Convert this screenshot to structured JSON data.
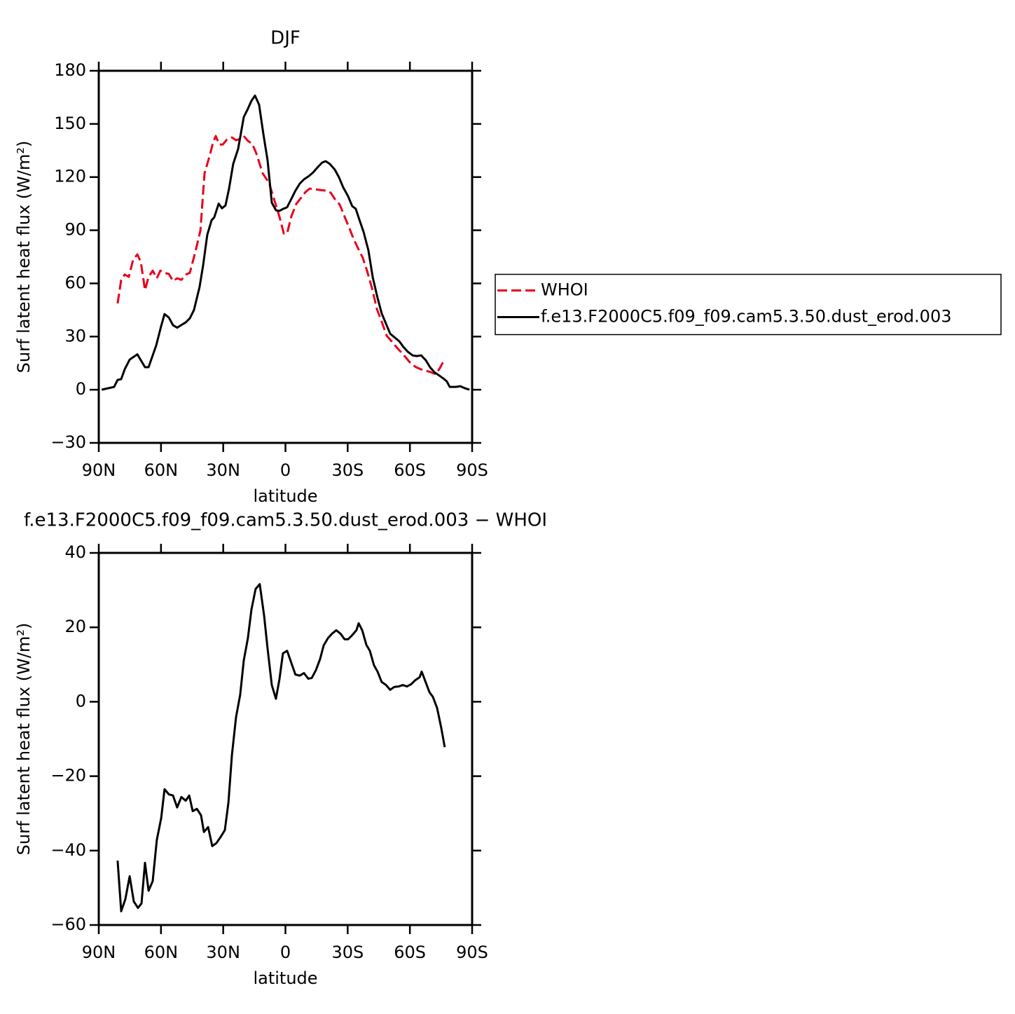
{
  "chart_data": [
    {
      "type": "line",
      "title": "DJF",
      "x_label": "latitude",
      "y_label": "Surf latent heat flux (W/m²)",
      "xlim": [
        90,
        -90
      ],
      "xticks": [
        {
          "value": 90,
          "label": "90N"
        },
        {
          "value": 60,
          "label": "60N"
        },
        {
          "value": 30,
          "label": "30N"
        },
        0,
        {
          "value": -30,
          "label": "30S"
        },
        {
          "value": -60,
          "label": "60S"
        },
        {
          "value": -90,
          "label": "90S"
        }
      ],
      "ylim": [
        -30,
        180
      ],
      "yticks": [
        {
          "value": -30,
          "label": "−30"
        },
        0,
        30,
        60,
        90,
        120,
        150,
        180
      ],
      "legend": "right",
      "series": [
        {
          "name": "WHOI",
          "color": "#e8001a",
          "dash": true,
          "x": [
            80.9,
            79.2,
            77.5,
            75.5,
            73.5,
            71.4,
            69.7,
            67.7,
            66,
            64,
            62,
            60.3,
            58.3,
            56.2,
            54.2,
            52.2,
            50.2,
            48.1,
            46.1,
            43.4,
            41,
            39,
            36.6,
            34.9,
            33.6,
            31.9,
            30.2,
            28.2,
            25.8,
            23.8,
            21.8,
            19.8,
            18.1,
            16,
            14,
            11,
            7.9,
            5.2,
            2.9,
            0.8,
            -0.8,
            -2.8,
            -5.2,
            -7.6,
            -9.6,
            -11.7,
            -14.4,
            -17.1,
            -19.8,
            -21.8,
            -23.8,
            -26.2,
            -28.5,
            -30.6,
            -32.9,
            -35.3,
            -37.3,
            -39.3,
            -41.7,
            -44.1,
            -46.4,
            -48.8,
            -51.2,
            -53.5,
            -55.9,
            -58.3,
            -60.6,
            -63,
            -65.4,
            -67.7,
            -70.1,
            -72.5,
            -74.5,
            -76.8
          ],
          "values": [
            48.7,
            62,
            65,
            63.7,
            73.2,
            76.4,
            72,
            56.2,
            63.7,
            67.2,
            62.9,
            67.2,
            66,
            65.3,
            61.3,
            62.9,
            62,
            64.9,
            66,
            78,
            89.8,
            122.2,
            131.7,
            139.6,
            143.2,
            138.4,
            138.4,
            141.2,
            142.4,
            140.8,
            141.6,
            142.8,
            140.4,
            138.8,
            133.3,
            122.2,
            116.7,
            106.4,
            97.7,
            88.2,
            88.2,
            97.7,
            104.8,
            108.4,
            111.5,
            113.5,
            113.1,
            112.7,
            112.3,
            111.2,
            107.6,
            104.4,
            97.7,
            91.8,
            85,
            79.1,
            74.4,
            67.2,
            57.4,
            45.5,
            38.4,
            30.5,
            27.3,
            24.1,
            21,
            17.8,
            14.6,
            12.7,
            11.5,
            10.7,
            9.9,
            8.7,
            12.3,
            17.4
          ]
        },
        {
          "name": "f.e13.F2000C5.f09_f09.cam5.3.50.dust_erod.003",
          "color": "#000000",
          "dash": false,
          "x": [
            88.6,
            82.6,
            80.9,
            79.2,
            77.5,
            75.1,
            71.4,
            67.7,
            66,
            62.3,
            59.9,
            58.3,
            56.2,
            54.2,
            52.2,
            49.8,
            48.1,
            46.1,
            44.1,
            41.4,
            39.7,
            37.7,
            35.6,
            34.3,
            32.2,
            30.6,
            28.9,
            27.2,
            25.2,
            22.8,
            20.1,
            18.4,
            16.4,
            14.7,
            12.7,
            10.6,
            8.6,
            6.6,
            4.6,
            2.9,
            1.2,
            -0.8,
            -2.8,
            -4.8,
            -6.9,
            -8.9,
            -11.3,
            -13.3,
            -15.4,
            -17.7,
            -19.4,
            -21.4,
            -23.8,
            -25.8,
            -27.8,
            -30.2,
            -32.2,
            -33.9,
            -35.6,
            -37.7,
            -40,
            -42.1,
            -44.4,
            -46.4,
            -48.5,
            -50.5,
            -52.9,
            -54.9,
            -56.9,
            -59,
            -61.3,
            -63.3,
            -65.4,
            -67.7,
            -69.7,
            -71.8,
            -73.8,
            -76.2,
            -77.8,
            -79.2,
            -82.2,
            -84.3,
            -86.6,
            -88.7
          ],
          "values": [
            0,
            1.6,
            5.5,
            6,
            11.5,
            17,
            20,
            12.7,
            12.7,
            25,
            36,
            42.7,
            40.7,
            36.4,
            35,
            36.8,
            38,
            40.3,
            45,
            58,
            70,
            87.4,
            95.7,
            97.3,
            105,
            102.4,
            104,
            113.5,
            127.4,
            136,
            153.9,
            157.8,
            163,
            166,
            160.8,
            144,
            129.4,
            105.6,
            101.3,
            100.9,
            102,
            103,
            107.6,
            112.3,
            116.3,
            118.7,
            120.6,
            122.6,
            125.4,
            128.2,
            129,
            127.4,
            124.2,
            119.9,
            114.3,
            109.2,
            103.6,
            102.1,
            96.1,
            89,
            78.7,
            63.3,
            51.8,
            43.1,
            37.2,
            31.6,
            29.3,
            27.3,
            24.1,
            21.4,
            19.4,
            19,
            19.4,
            16.6,
            12.7,
            9.9,
            8.3,
            6.3,
            4.7,
            1.6,
            1.6,
            2,
            0.8,
            0
          ]
        }
      ]
    },
    {
      "type": "line",
      "title": "f.e13.F2000C5.f09_f09.cam5.3.50.dust_erod.003 − WHOI",
      "x_label": "latitude",
      "y_label": "Surf latent heat flux (W/m²)",
      "xlim": [
        90,
        -90
      ],
      "xticks": [
        {
          "value": 90,
          "label": "90N"
        },
        {
          "value": 60,
          "label": "60N"
        },
        {
          "value": 30,
          "label": "30N"
        },
        0,
        {
          "value": -30,
          "label": "30S"
        },
        {
          "value": -60,
          "label": "60S"
        },
        {
          "value": -90,
          "label": "90S"
        }
      ],
      "ylim": [
        -60,
        40
      ],
      "yticks": [
        {
          "value": -60,
          "label": "−60"
        },
        {
          "value": -40,
          "label": "−40"
        },
        {
          "value": -20,
          "label": "−20"
        },
        0,
        20,
        40
      ],
      "series": [
        {
          "color": "#000000",
          "dash": false,
          "x": [
            80.9,
            79.2,
            77.2,
            75.1,
            73.1,
            71.1,
            69.4,
            67.7,
            66,
            64,
            62,
            59.9,
            58.3,
            56.2,
            54.2,
            52.2,
            50.2,
            48.1,
            46.4,
            44.7,
            42.7,
            40.7,
            39.3,
            37.3,
            35.3,
            33.3,
            31.2,
            29.2,
            27.5,
            25.8,
            23.8,
            21.8,
            20.1,
            18.1,
            16.4,
            14.4,
            12.4,
            10.3,
            8.6,
            6.6,
            4.6,
            2.9,
            1.2,
            -0.8,
            -2.8,
            -4.8,
            -6.9,
            -8.9,
            -11,
            -12.7,
            -14.7,
            -16.7,
            -18.4,
            -20.5,
            -22.5,
            -24.5,
            -26.5,
            -28.5,
            -30.2,
            -32.2,
            -34.2,
            -35.3,
            -37,
            -39,
            -40.7,
            -42.7,
            -44.4,
            -46.4,
            -48.5,
            -50.5,
            -52.5,
            -54.6,
            -56.6,
            -58.6,
            -60.6,
            -62.6,
            -64.7,
            -65.7,
            -67.7,
            -69.4,
            -71.1,
            -73.1,
            -75.1,
            -76.8
          ],
          "values": [
            -42.7,
            -56.3,
            -53.1,
            -46.9,
            -53.7,
            -55.4,
            -54.2,
            -43.3,
            -50.8,
            -48.2,
            -37.1,
            -31.3,
            -23.5,
            -24.9,
            -25.2,
            -28.4,
            -25.6,
            -26.6,
            -25.2,
            -29.4,
            -28.8,
            -30.5,
            -35,
            -33.7,
            -38.8,
            -38,
            -36.3,
            -34.5,
            -27.1,
            -14.3,
            -4.1,
            1.9,
            11.1,
            17.1,
            24.7,
            30.3,
            31.6,
            23.2,
            14.3,
            4.5,
            0.8,
            6,
            13,
            13.7,
            10.5,
            7.3,
            7,
            7.7,
            6.2,
            6.4,
            8.5,
            11.5,
            15.1,
            17.1,
            18.3,
            19.2,
            18.3,
            16.8,
            16.8,
            17.9,
            19.2,
            21.1,
            19.2,
            15.3,
            13.7,
            9.8,
            8.1,
            5.3,
            4.5,
            3.2,
            4,
            4.1,
            4.5,
            4.1,
            4.7,
            5.8,
            6.6,
            8.1,
            5.1,
            2.6,
            1.3,
            -1.7,
            -7,
            -12.2
          ]
        }
      ]
    }
  ]
}
